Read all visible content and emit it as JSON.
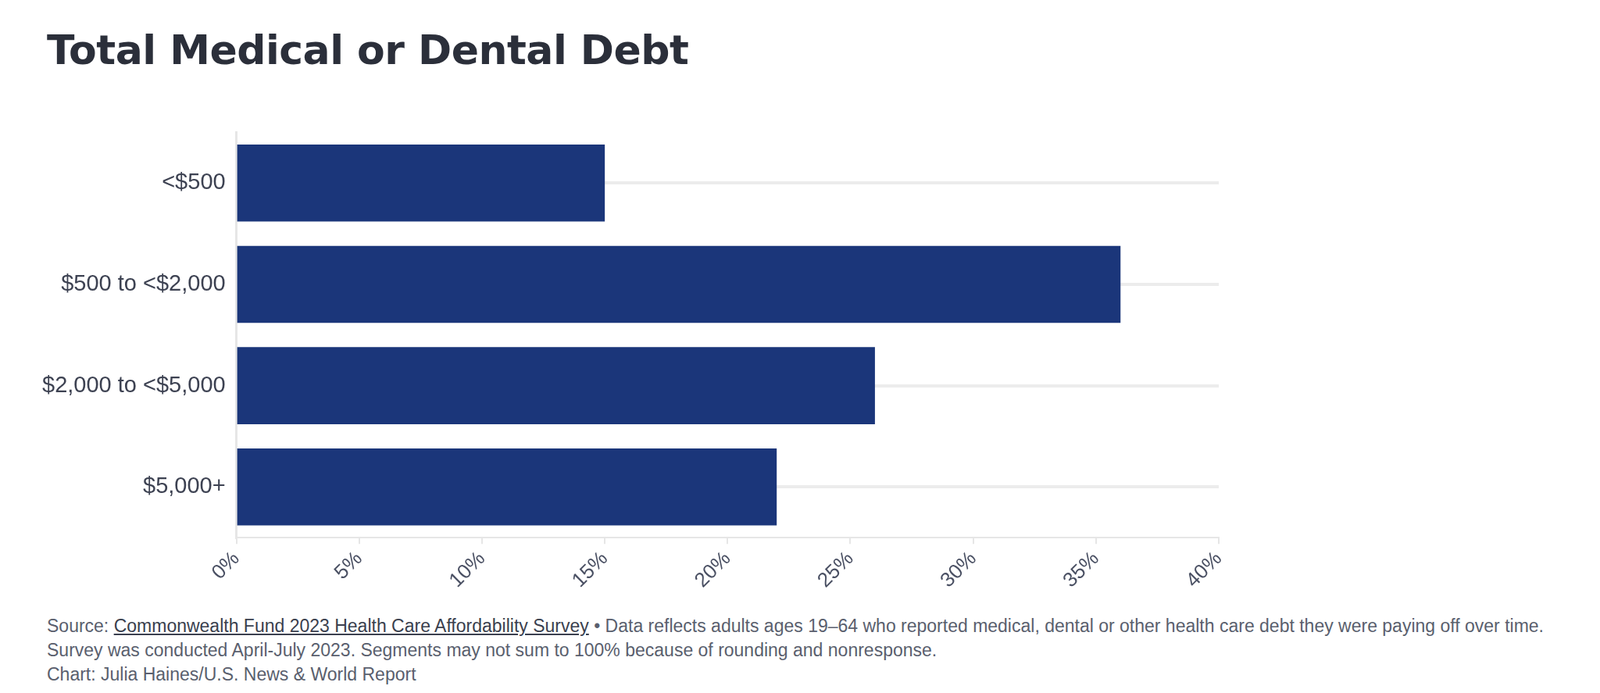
{
  "chart_data": {
    "type": "bar",
    "orientation": "horizontal",
    "title": "Total Medical or Dental Debt",
    "categories": [
      "<$500",
      "$500 to <$2,000",
      "$2,000 to <$5,000",
      "$5,000+"
    ],
    "values": [
      15,
      36,
      26,
      22
    ],
    "color": "#1b367a",
    "xlim": [
      0,
      40
    ],
    "xticks": [
      {
        "value": 0,
        "label": "0%"
      },
      {
        "value": 5,
        "label": "5%"
      },
      {
        "value": 10,
        "label": "10%"
      },
      {
        "value": 15,
        "label": "15%"
      },
      {
        "value": 20,
        "label": "20%"
      },
      {
        "value": 25,
        "label": "25%"
      },
      {
        "value": 30,
        "label": "30%"
      },
      {
        "value": 35,
        "label": "35%"
      },
      {
        "value": 40,
        "label": "40%"
      }
    ],
    "grid": true,
    "legend": "none",
    "source": {
      "label": "Source:",
      "link": "Commonwealth Fund 2023 Health Care Affordability Survey",
      "note": "• Data reflects adults ages 19–64 who reported medical, dental or other health care debt they were paying off over time. Survey was conducted April-July 2023. Segments may not sum to 100% because of rounding and nonresponse."
    },
    "credit": "Chart: Julia Haines/U.S. News & World Report"
  }
}
